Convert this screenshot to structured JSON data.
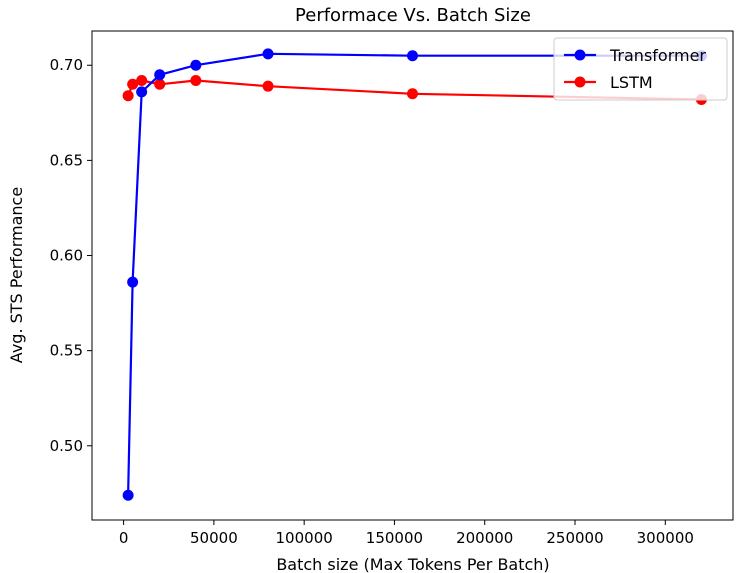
{
  "chart_data": {
    "type": "line",
    "title": "Performace Vs. Batch Size",
    "xlabel": "Batch size (Max Tokens Per Batch)",
    "ylabel": "Avg. STS Performance",
    "xlim": [
      -17500,
      337500
    ],
    "ylim": [
      0.461,
      0.718
    ],
    "xticks": [
      0,
      50000,
      100000,
      150000,
      200000,
      250000,
      300000
    ],
    "xtick_labels": [
      "0",
      "50000",
      "100000",
      "150000",
      "200000",
      "250000",
      "300000"
    ],
    "yticks": [
      0.5,
      0.55,
      0.6,
      0.65,
      0.7
    ],
    "ytick_labels": [
      "0.50",
      "0.55",
      "0.60",
      "0.65",
      "0.70"
    ],
    "grid": false,
    "legend_position": "top-right",
    "series": [
      {
        "name": "Transformer",
        "color": "#0000ff",
        "x": [
          2500,
          5000,
          10000,
          20000,
          40000,
          80000,
          160000,
          320000
        ],
        "y": [
          0.474,
          0.586,
          0.686,
          0.695,
          0.7,
          0.706,
          0.705,
          0.705
        ]
      },
      {
        "name": "LSTM",
        "color": "#ff0000",
        "x": [
          2500,
          5000,
          10000,
          20000,
          40000,
          80000,
          160000,
          320000
        ],
        "y": [
          0.684,
          0.69,
          0.692,
          0.69,
          0.692,
          0.689,
          0.685,
          0.682
        ]
      }
    ]
  }
}
